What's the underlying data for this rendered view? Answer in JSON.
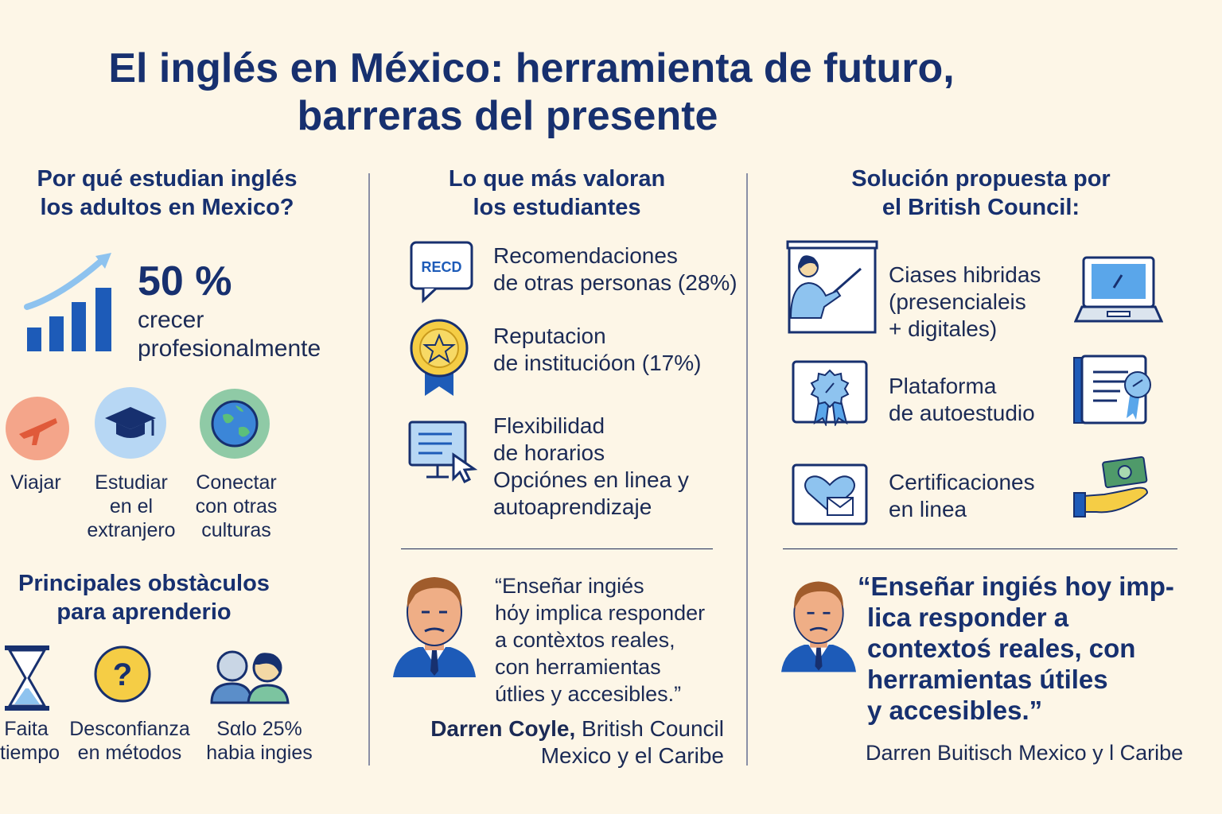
{
  "title": {
    "line1": "El inglés en México: herramienta de futuro,",
    "line2": "barreras del presente"
  },
  "col1": {
    "heading_l1": "Por qué estudian inglés",
    "heading_l2": "los adultos en Mexico?",
    "stat_value": "50 %",
    "stat_l1": "crecer",
    "stat_l2": "profesionalmente",
    "reasons": [
      {
        "l1": "Viajar",
        "l2": "",
        "l3": "",
        "icon": "airplane-icon"
      },
      {
        "l1": "Estudiar",
        "l2": "en el",
        "l3": "extranjero",
        "icon": "graduation-cap-icon"
      },
      {
        "l1": "Conectar",
        "l2": "con otras",
        "l3": "culturas",
        "icon": "globe-icon"
      }
    ],
    "obstacles_l1": "Principales obstàculos",
    "obstacles_l2": "para aprenderio",
    "obstacles": [
      {
        "l1": "Faita",
        "l2": "tiempo",
        "icon": "hourglass-icon"
      },
      {
        "l1": "Desconfianza",
        "l2": "en métodos",
        "icon": "question-icon"
      },
      {
        "l1": "Sαlo 25%",
        "l2": "habia ingies",
        "icon": "people-icon"
      }
    ]
  },
  "col2": {
    "heading_l1": "Lo que más valoran",
    "heading_l2": "los estudiantes",
    "items": [
      {
        "l1": "Recomendaciones",
        "l2": "de otras personas (28%)",
        "icon_text": "RECD"
      },
      {
        "l1": "Reputacion",
        "l2": "de institucióon (17%)"
      },
      {
        "l1": "Flexibilidad",
        "l2": "de horarios",
        "l3": "Opcióneѕ en linea y",
        "l4": "autoaprendizaje"
      }
    ],
    "quote": [
      "“Enseñar ingiés",
      "hόy implica responder",
      "a contèxtos reales,",
      "con herramientas",
      "útlies y accesibles.”"
    ],
    "author_name": "Darren Coyle,",
    "author_rest": " British Council",
    "author_l2": "Mexico y el Caribe"
  },
  "col3": {
    "heading_l1": "Solución propuesta por",
    "heading_l2": "el British Council:",
    "items": [
      {
        "l1": "Ciases hibridas",
        "l2": "(presencialeis",
        "l3": "+ digitales)"
      },
      {
        "l1": "Plataforma",
        "l2": "de autoestudio"
      },
      {
        "l1": "Certificaciones",
        "l2": "en linea"
      }
    ],
    "quote": [
      "“Enseñar ingiés hoy imp-",
      "lica responder a",
      "contextoś reales, con",
      "herramientas útiles",
      "y accesibles.”"
    ],
    "author": "Darren Buitisch Mexico y l Caribe"
  },
  "colors": {
    "navy": "#17306f",
    "background": "#fdf6e7",
    "blue": "#1d5bb8",
    "light_blue": "#8ec3ef",
    "orange": "#f08a6a",
    "gold": "#f2c94c",
    "green": "#7cc4a0"
  }
}
